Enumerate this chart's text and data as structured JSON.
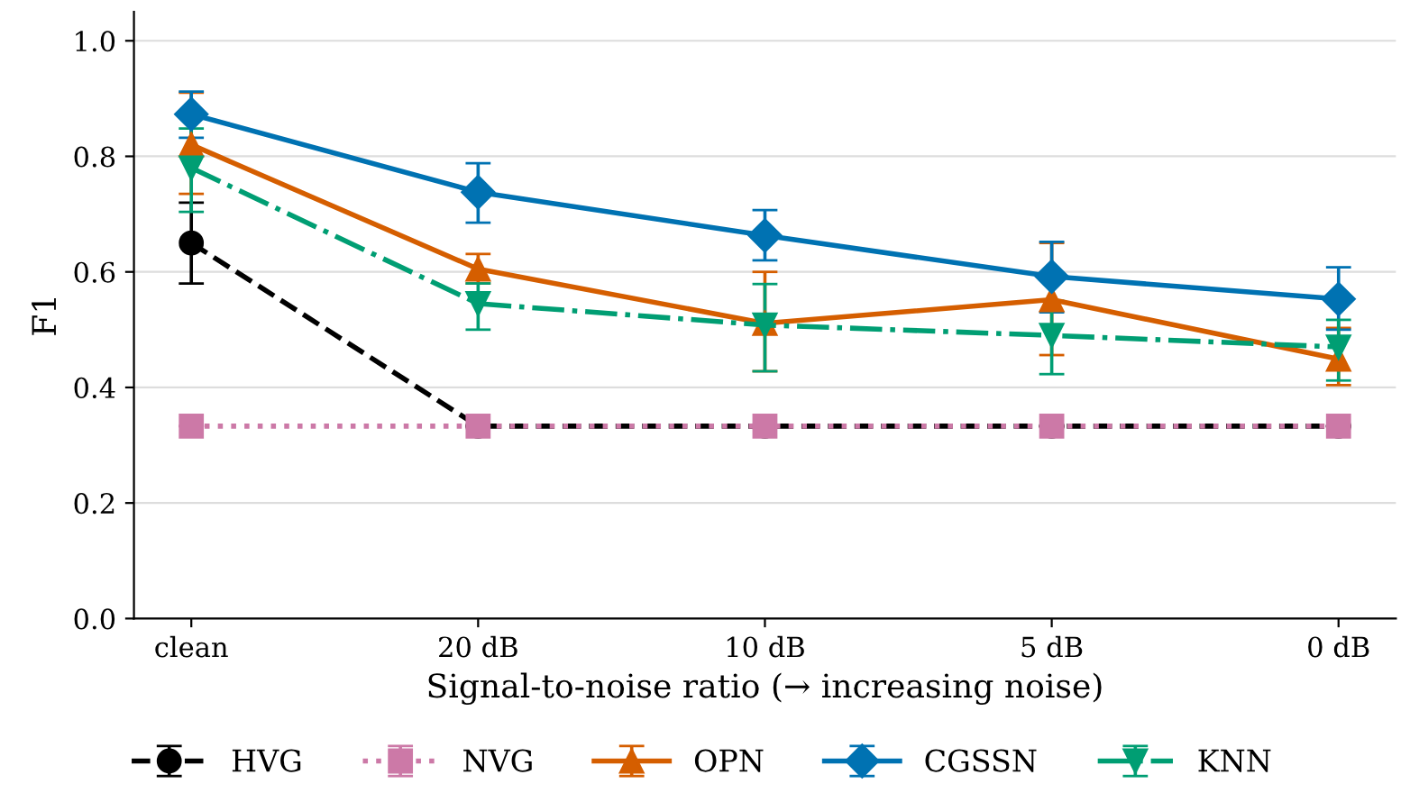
{
  "chart_data": {
    "type": "line",
    "xlabel": "Signal-to-noise ratio (→ increasing noise)",
    "ylabel": "F1",
    "categories": [
      "clean",
      "20 dB",
      "10 dB",
      "5 dB",
      "0 dB"
    ],
    "ylim": [
      0,
      1.05
    ],
    "yticks": [
      {
        "value": 0,
        "label": "0.0"
      },
      0.2,
      0.4,
      0.6,
      0.8,
      {
        "value": 1,
        "label": "1.0"
      }
    ],
    "grid": "y",
    "legend": "bottom",
    "series": [
      {
        "name": "HVG",
        "color": "#000000",
        "marker": "circle",
        "line_style": "dashed",
        "values": [
          0.65,
          0.333,
          0.333,
          0.333,
          0.333
        ],
        "errors": [
          [
            0.58,
            0.72
          ],
          null,
          null,
          null,
          null
        ]
      },
      {
        "name": "NVG",
        "color": "#cc79a7",
        "marker": "square",
        "line_style": "dotted",
        "values": [
          0.333,
          0.333,
          0.333,
          0.333,
          0.333
        ],
        "errors": [
          null,
          null,
          null,
          null,
          null
        ]
      },
      {
        "name": "OPN",
        "color": "#d55e00",
        "marker": "triangle",
        "line_style": "solid",
        "values": [
          0.82,
          0.605,
          0.511,
          0.552,
          0.449
        ],
        "errors": [
          [
            0.735,
            0.91
          ],
          [
            0.58,
            0.631
          ],
          [
            0.428,
            0.6
          ],
          [
            0.456,
            0.65
          ],
          [
            0.404,
            0.503
          ]
        ]
      },
      {
        "name": "CGSSN",
        "color": "#0072b2",
        "marker": "diamond",
        "line_style": "solid",
        "values": [
          0.873,
          0.738,
          0.663,
          0.592,
          0.553
        ],
        "errors": [
          [
            0.832,
            0.912
          ],
          [
            0.685,
            0.788
          ],
          [
            0.62,
            0.707
          ],
          [
            0.53,
            0.652
          ],
          [
            0.5,
            0.608
          ]
        ]
      },
      {
        "name": "KNN",
        "color": "#009e73",
        "marker": "triangle_down",
        "line_style": "dashdot",
        "values": [
          0.78,
          0.545,
          0.508,
          0.49,
          0.47
        ],
        "errors": [
          [
            0.704,
            0.848
          ],
          [
            0.5,
            0.58
          ],
          [
            0.428,
            0.579
          ],
          [
            0.423,
            0.55
          ],
          [
            0.412,
            0.517
          ]
        ]
      }
    ]
  }
}
